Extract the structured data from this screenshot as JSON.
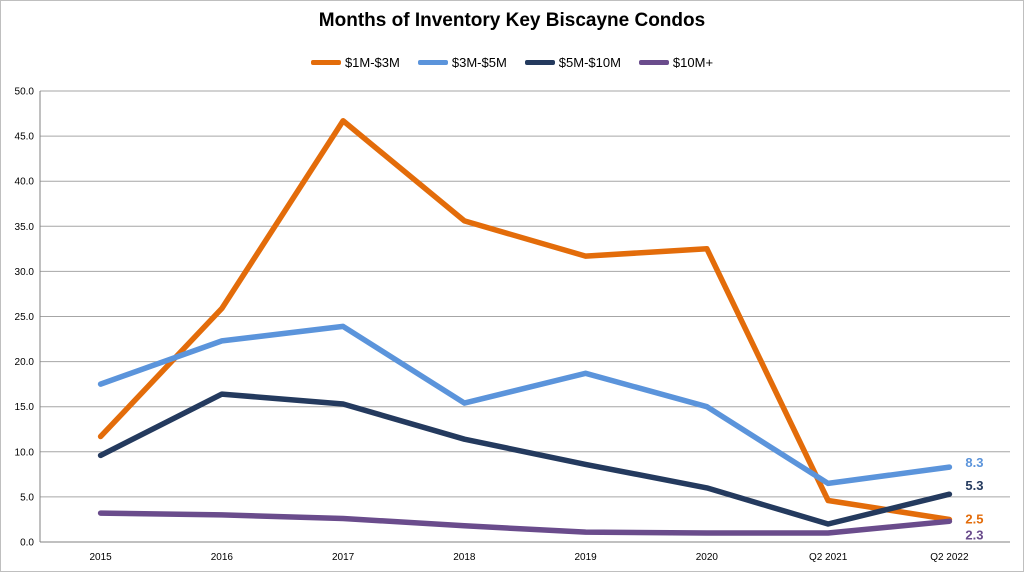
{
  "chart_data": {
    "type": "line",
    "title": "Months of Inventory Key Biscayne Condos",
    "xlabel": "",
    "ylabel": "",
    "categories": [
      "2015",
      "2016",
      "2017",
      "2018",
      "2019",
      "2020",
      "Q2 2021",
      "Q2 2022"
    ],
    "ylim": [
      0,
      50
    ],
    "yticks": [
      "0.0",
      "5.0",
      "10.0",
      "15.0",
      "20.0",
      "25.0",
      "30.0",
      "35.0",
      "40.0",
      "45.0",
      "50.0"
    ],
    "grid": true,
    "legend_position": "top",
    "series": [
      {
        "name": "$1M-$3M",
        "color": "#E36C0A",
        "values": [
          11.7,
          25.9,
          46.7,
          35.6,
          31.7,
          32.5,
          4.6,
          2.5
        ],
        "end_label": "2.5"
      },
      {
        "name": "$3M-$5M",
        "color": "#5B94DB",
        "values": [
          17.5,
          22.3,
          23.9,
          15.4,
          18.7,
          15.0,
          6.5,
          8.3
        ],
        "end_label": "8.3"
      },
      {
        "name": "$5M-$10M",
        "color": "#243A5E",
        "values": [
          9.6,
          16.4,
          15.3,
          11.4,
          8.6,
          6.0,
          2.0,
          5.3
        ],
        "end_label": "5.3"
      },
      {
        "name": "$10M+",
        "color": "#6A4C8C",
        "values": [
          3.2,
          3.0,
          2.6,
          1.8,
          1.1,
          1.0,
          1.0,
          2.3
        ],
        "end_label": "2.3"
      }
    ]
  }
}
